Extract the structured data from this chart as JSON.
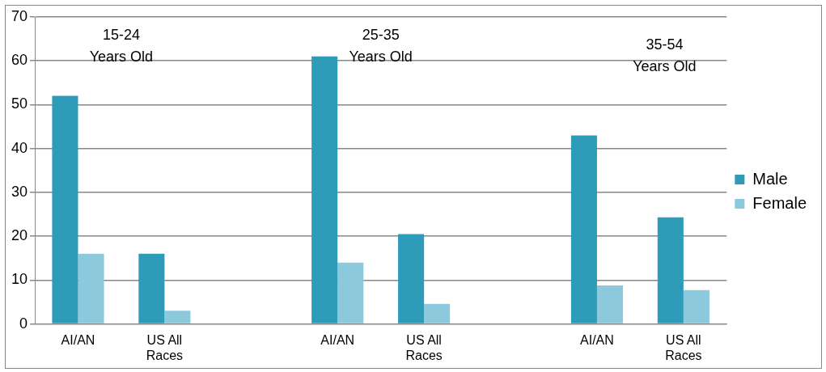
{
  "chart_data": {
    "type": "bar",
    "categories": [
      "AI/AN",
      "US All Races",
      null,
      "AI/AN",
      "US All Races",
      null,
      "AI/AN",
      "US All Races"
    ],
    "series": [
      {
        "name": "Male",
        "color": "#2e9bb8",
        "values": [
          52,
          16,
          null,
          61,
          20.5,
          null,
          43,
          24.3
        ]
      },
      {
        "name": "Female",
        "color": "#8cc9dc",
        "values": [
          16,
          3,
          null,
          14,
          4.6,
          null,
          8.8,
          7.7
        ]
      }
    ],
    "ylim": [
      0,
      70
    ],
    "yticks": [
      0,
      10,
      20,
      30,
      40,
      50,
      60,
      70
    ],
    "grid": "y",
    "legend": "right",
    "annotations": [
      "15-24 Years Old",
      "25-35 Years Old",
      "35-54 Years Old"
    ]
  }
}
